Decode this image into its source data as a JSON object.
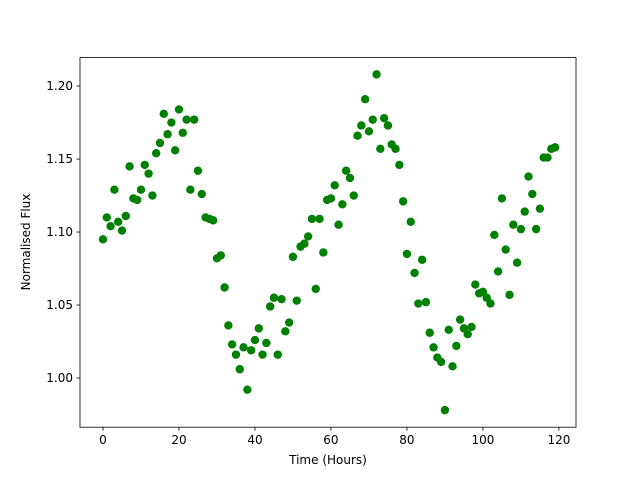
{
  "chart_data": {
    "type": "scatter",
    "x_label": "Time (Hours)",
    "y_label": "Normalised Flux",
    "x": [
      0,
      1,
      2,
      3,
      4,
      5,
      6,
      7,
      8,
      9,
      10,
      11,
      12,
      13,
      14,
      15,
      16,
      17,
      18,
      19,
      20,
      21,
      22,
      23,
      24,
      25,
      26,
      27,
      28,
      29,
      30,
      31,
      32,
      33,
      34,
      35,
      36,
      37,
      38,
      39,
      40,
      41,
      42,
      43,
      44,
      45,
      46,
      47,
      48,
      49,
      50,
      51,
      52,
      53,
      54,
      55,
      56,
      57,
      58,
      59,
      60,
      61,
      62,
      63,
      64,
      65,
      66,
      67,
      68,
      69,
      70,
      71,
      72,
      73,
      74,
      75,
      76,
      77,
      78,
      79,
      80,
      81,
      82,
      83,
      84,
      85,
      86,
      87,
      88,
      89,
      90,
      91,
      92,
      93,
      94,
      95,
      96,
      97,
      98,
      99,
      100,
      101,
      102,
      103,
      104,
      105,
      106,
      107,
      108,
      109,
      110,
      111,
      112,
      113,
      114,
      115,
      116,
      117,
      118,
      119
    ],
    "values": [
      1.095,
      1.11,
      1.104,
      1.129,
      1.107,
      1.101,
      1.111,
      1.145,
      1.123,
      1.122,
      1.129,
      1.146,
      1.14,
      1.125,
      1.154,
      1.161,
      1.181,
      1.167,
      1.175,
      1.156,
      1.184,
      1.168,
      1.177,
      1.129,
      1.177,
      1.142,
      1.126,
      1.11,
      1.109,
      1.108,
      1.082,
      1.084,
      1.062,
      1.036,
      1.023,
      1.016,
      1.006,
      1.021,
      0.992,
      1.019,
      1.026,
      1.034,
      1.016,
      1.024,
      1.049,
      1.055,
      1.016,
      1.054,
      1.032,
      1.038,
      1.083,
      1.053,
      1.09,
      1.092,
      1.097,
      1.109,
      1.061,
      1.109,
      1.086,
      1.122,
      1.123,
      1.132,
      1.105,
      1.119,
      1.142,
      1.137,
      1.125,
      1.166,
      1.173,
      1.191,
      1.169,
      1.177,
      1.208,
      1.157,
      1.178,
      1.173,
      1.16,
      1.157,
      1.146,
      1.121,
      1.085,
      1.107,
      1.072,
      1.051,
      1.081,
      1.052,
      1.031,
      1.021,
      1.014,
      1.011,
      0.978,
      1.033,
      1.008,
      1.022,
      1.04,
      1.034,
      1.03,
      1.035,
      1.064,
      1.058,
      1.059,
      1.055,
      1.051,
      1.098,
      1.073,
      1.123,
      1.088,
      1.057,
      1.105,
      1.079,
      1.102,
      1.114,
      1.138,
      1.126,
      1.102,
      1.116,
      1.151,
      1.151,
      1.157,
      1.158
    ],
    "color": "#008000",
    "xlim": [
      -6.05,
      124.5
    ],
    "ylim": [
      0.9663,
      1.2195
    ],
    "xticks": [
      0,
      20,
      40,
      60,
      80,
      100,
      120
    ],
    "yticks": [
      {
        "value": 1.0,
        "label": "1.00"
      },
      {
        "value": 1.05,
        "label": "1.05"
      },
      {
        "value": 1.1,
        "label": "1.10"
      },
      {
        "value": 1.15,
        "label": "1.15"
      },
      {
        "value": 1.2,
        "label": "1.20"
      }
    ]
  }
}
